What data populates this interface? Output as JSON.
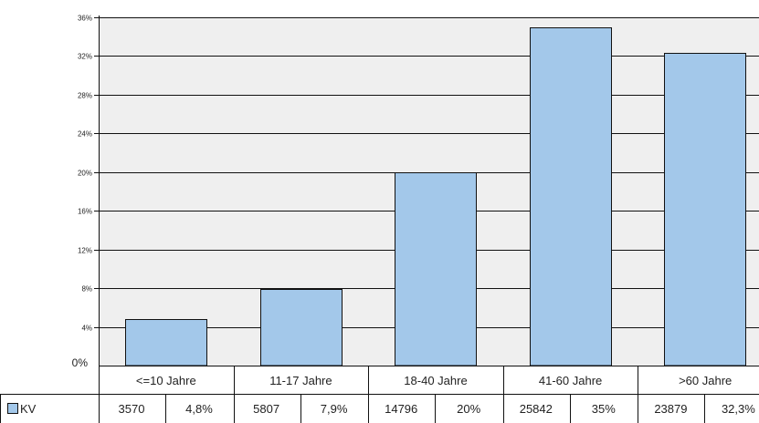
{
  "chart_data": {
    "type": "bar",
    "categories": [
      "<=10 Jahre",
      "11-17 Jahre",
      "18-40 Jahre",
      "41-60 Jahre",
      ">60 Jahre"
    ],
    "series": [
      {
        "name": "KV",
        "values": [
          4.8,
          7.9,
          20,
          35,
          32.3
        ],
        "counts": [
          "3570",
          "5807",
          "14796",
          "25842",
          "23879"
        ],
        "percent_labels": [
          "4,8%",
          "7,9%",
          "20%",
          "35%",
          "32,3%"
        ],
        "color": "#a3c8ea"
      }
    ],
    "ylim": [
      0,
      36
    ],
    "yticks": [
      4,
      8,
      12,
      16,
      20,
      24,
      28,
      32,
      36
    ],
    "ytick_labels": [
      "4%",
      "8%",
      "12%",
      "16%",
      "20%",
      "24%",
      "28%",
      "32%",
      "36%"
    ],
    "y_zero_label": "0%",
    "grid": true,
    "plot_background": "#efefef",
    "legend_key_label": "KV",
    "title": "",
    "xlabel": "",
    "ylabel": ""
  }
}
